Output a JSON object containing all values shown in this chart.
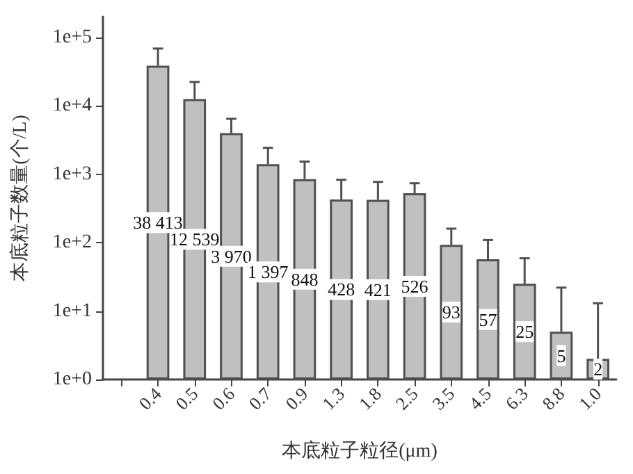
{
  "chart_data": {
    "type": "bar",
    "xlabel": "本底粒子粒径(μm)",
    "ylabel": "本底粒子数量(个/L)",
    "categories": [
      null,
      "0.4",
      "0.5",
      "0.6",
      "0.7",
      "0.9",
      "1.3",
      "1.8",
      "2.5",
      "3.5",
      "4.5",
      "6.3",
      "8.8",
      "1.0"
    ],
    "values": [
      null,
      38413,
      12539,
      3970,
      1397,
      848,
      428,
      421,
      526,
      93,
      57,
      25,
      5,
      2
    ],
    "value_labels": [
      null,
      "38 413",
      "12 539",
      "3 970",
      "1 397",
      "848",
      "428",
      "421",
      "526",
      "93",
      "57",
      "25",
      "5",
      "2"
    ],
    "errors": [
      null,
      30000,
      9700,
      2470,
      1030,
      680,
      400,
      350,
      210,
      67,
      52,
      34,
      17,
      11
    ],
    "color": "#c0c0c0",
    "log": true,
    "ylim": [
      1,
      200000
    ],
    "yticks": [
      {
        "value": 1,
        "label": "1e+0"
      },
      {
        "value": 10,
        "label": "1e+1"
      },
      {
        "value": 100,
        "label": "1e+2"
      },
      {
        "value": 1000,
        "label": "1e+3"
      },
      {
        "value": 10000,
        "label": "1e+4"
      },
      {
        "value": 100000,
        "label": "1e+5"
      }
    ],
    "grid": false
  }
}
